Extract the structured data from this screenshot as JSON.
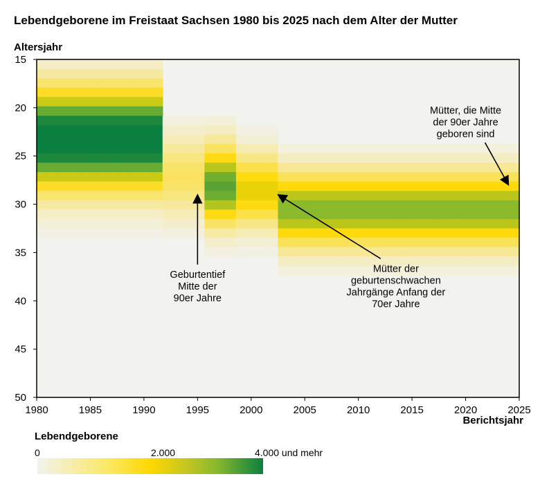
{
  "chart_data": {
    "type": "heatmap",
    "title": "Lebendgeborene im Freistaat Sachsen 1980 bis 2025 nach dem Alter der Mutter",
    "xlabel": "Berichtsjahr",
    "ylabel": "Altersjahr",
    "x_ticks": [
      "1980",
      "1985",
      "1990",
      "1995",
      "2000",
      "2005",
      "2010",
      "2015",
      "2020",
      "2025"
    ],
    "y_ticks": [
      "15",
      "20",
      "25",
      "30",
      "35",
      "40",
      "45",
      "50"
    ],
    "xlim": [
      1980,
      2025
    ],
    "ylim": [
      15,
      50
    ],
    "x_range": [
      1980,
      2025
    ],
    "y_range": [
      15,
      50
    ],
    "colorbar": {
      "title": "Lebendgeborene",
      "ticks": [
        "0",
        "2.000",
        "4.000 und mehr"
      ],
      "range": [
        0,
        4000
      ],
      "colors": [
        "#f2f2ef",
        "#ffd800",
        "#86b82e",
        "#0b8040"
      ]
    },
    "clusters": [
      {
        "years": [
          1980,
          1991
        ],
        "peak_age": 23,
        "spread_age": 5.5,
        "peak_value": 4500
      },
      {
        "years": [
          1992,
          1998
        ],
        "peak_age": 27,
        "spread_age": 4.5,
        "peak_value": 1200
      },
      {
        "years": [
          1996,
          2002
        ],
        "peak_age": 28.5,
        "spread_age": 4.0,
        "peak_value": 2200
      },
      {
        "years": [
          2003,
          2025
        ],
        "peak_age": 30.5,
        "spread_age": 4.2,
        "peak_value": 2900
      }
    ],
    "annotations": [
      {
        "text": [
          "Geburtentief",
          "Mitte der",
          "90er Jahre"
        ],
        "x": 1995,
        "y": 38.5,
        "arrow_to": [
          1995,
          29
        ]
      },
      {
        "text": [
          "Mütter der",
          "geburtenschwachen",
          "Jahrgänge Anfang der",
          "70er Jahre"
        ],
        "x": 2013.5,
        "y": 38.5,
        "arrow_to": [
          2002.5,
          29
        ]
      },
      {
        "text": [
          "Mütter, die Mitte",
          "der 90er Jahre",
          "geboren sind"
        ],
        "x": 2020,
        "y": 21.5,
        "arrow_to": [
          2024,
          28
        ]
      }
    ]
  }
}
